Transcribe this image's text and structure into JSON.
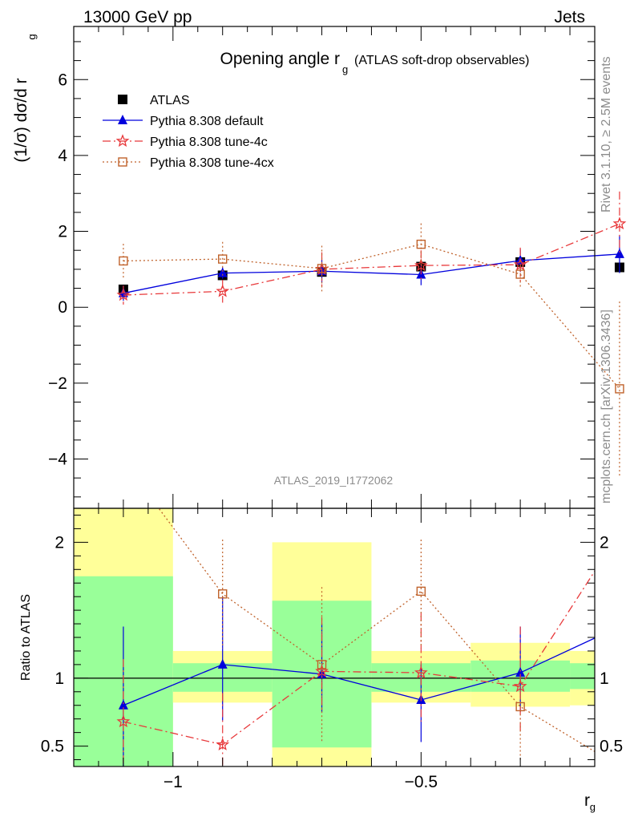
{
  "header": {
    "left": "13000 GeV pp",
    "right": "Jets"
  },
  "side_labels": {
    "rivet": "Rivet 3.1.10, ≥ 2.5M events",
    "source": "mcplots.cern.ch [arXiv:1306.3436]"
  },
  "watermark": "ATLAS_2019_I1772062",
  "chart_data": [
    {
      "type": "line",
      "title": "Opening angle r",
      "title_sub": "g",
      "title_suffix": "(ATLAS soft-drop observables)",
      "ylabel": "(1/σ) dσ/d r",
      "ylabel_sub": "g",
      "xlabel": "r",
      "xlabel_sub": "g",
      "xlim": [
        -1.2,
        -0.15
      ],
      "ylim": [
        -5.3,
        7.4
      ],
      "x_ticks": [
        -1,
        -0.5
      ],
      "x_tick_labels": [
        "−1",
        "−0.5"
      ],
      "y_ticks": [
        -4,
        -2,
        0,
        2,
        4,
        6
      ],
      "y_tick_labels": [
        "−4",
        "−2",
        "0",
        "2",
        "4",
        "6"
      ],
      "x": [
        -1.1,
        -0.9,
        -0.7,
        -0.5,
        -0.3,
        -0.1
      ],
      "legend_position": "top-left",
      "series": [
        {
          "name": "ATLAS",
          "color": "#000000",
          "marker": "filled-square",
          "line": "none",
          "values": [
            0.47,
            0.84,
            0.93,
            1.07,
            1.19,
            1.05
          ],
          "errors": [
            0.1,
            0.1,
            0.1,
            0.08,
            0.1,
            0.1
          ]
        },
        {
          "name": "Pythia 8.308 default",
          "color": "#0000dd",
          "marker": "triangle",
          "line": "solid",
          "values": [
            0.37,
            0.9,
            0.95,
            0.86,
            1.23,
            1.4
          ],
          "errors": [
            0.2,
            0.15,
            0.3,
            0.28,
            0.3,
            0.5
          ]
        },
        {
          "name": "Pythia 8.308 tune-4c",
          "color": "#e8383a",
          "marker": "star",
          "line": "dashdot",
          "values": [
            0.32,
            0.42,
            1.0,
            1.1,
            1.12,
            2.2
          ],
          "errors": [
            0.25,
            0.3,
            0.45,
            0.4,
            0.45,
            0.85
          ]
        },
        {
          "name": "Pythia 8.308 tune-4cx",
          "color": "#c0622b",
          "marker": "open-square",
          "line": "dotted",
          "values": [
            1.22,
            1.27,
            1.02,
            1.66,
            0.87,
            -2.15
          ],
          "errors": [
            0.45,
            0.45,
            0.6,
            0.55,
            0.35,
            2.3
          ]
        }
      ]
    },
    {
      "type": "line",
      "ylabel": "Ratio to ATLAS",
      "xlim": [
        -1.2,
        -0.15
      ],
      "ylim": [
        0.35,
        2.25
      ],
      "y_ticks": [
        0.5,
        1,
        2
      ],
      "y_tick_labels": [
        "0.5",
        "1",
        "2"
      ],
      "x_ticks": [
        -1,
        -0.5
      ],
      "reference_line": 1,
      "bands": [
        {
          "x": [
            -1.2,
            -1.0
          ],
          "inner": [
            0.35,
            1.75
          ],
          "outer": [
            0.35,
            2.25
          ]
        },
        {
          "x": [
            -1.0,
            -0.8
          ],
          "inner": [
            0.9,
            1.11
          ],
          "outer": [
            0.82,
            1.2
          ]
        },
        {
          "x": [
            -0.8,
            -0.6
          ],
          "inner": [
            0.49,
            1.57
          ],
          "outer": [
            0.35,
            2.0
          ]
        },
        {
          "x": [
            -0.6,
            -0.4
          ],
          "inner": [
            0.9,
            1.11
          ],
          "outer": [
            0.82,
            1.2
          ]
        },
        {
          "x": [
            -0.4,
            -0.2
          ],
          "inner": [
            0.9,
            1.13
          ],
          "outer": [
            0.79,
            1.26
          ]
        },
        {
          "x": [
            -0.2,
            -0.15
          ],
          "inner": [
            0.92,
            1.11
          ],
          "outer": [
            0.8,
            1.2
          ]
        }
      ],
      "series": [
        {
          "name": "Pythia 8.308 default",
          "color": "#0000dd",
          "marker": "triangle",
          "line": "solid",
          "values": [
            0.8,
            1.1,
            1.03,
            0.84,
            1.04,
            1.38
          ],
          "err_low": [
            0.35,
            0.69,
            0.75,
            0.53,
            0.75,
            0.83
          ],
          "err_high": [
            1.38,
            1.6,
            1.4,
            1.1,
            1.38,
            1.9
          ]
        },
        {
          "name": "Pythia 8.308 tune-4c",
          "color": "#e8383a",
          "marker": "star",
          "line": "dashdot",
          "values": [
            0.68,
            0.51,
            1.05,
            1.04,
            0.94,
            2.07
          ],
          "err_low": [
            0.35,
            0.35,
            0.75,
            0.68,
            0.6,
            0.83
          ],
          "err_high": [
            1.14,
            0.89,
            1.45,
            1.48,
            1.38,
            2.25
          ]
        },
        {
          "name": "Pythia 8.308 tune-4cx",
          "color": "#c0622b",
          "marker": "open-square",
          "line": "dotted",
          "values": [
            2.6,
            1.62,
            1.1,
            1.64,
            0.79,
            0.35
          ],
          "err_low": [
            2.6,
            1.22,
            0.53,
            1.22,
            0.4,
            0.35
          ],
          "err_high": [
            2.6,
            2.02,
            1.67,
            2.02,
            1.12,
            0.35
          ]
        }
      ]
    }
  ]
}
